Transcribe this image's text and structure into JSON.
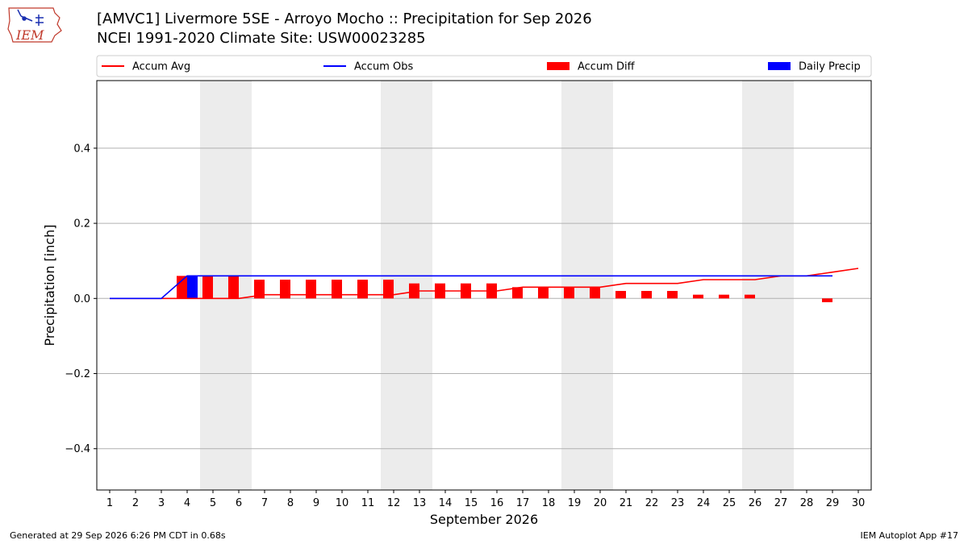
{
  "header": {
    "title_line1": "[AMVC1] Livermore 5SE - Arroyo Mocho :: Precipitation for Sep 2026",
    "title_line2": "NCEI 1991-2020 Climate Site: USW00023285",
    "logo_text": "IEM"
  },
  "footer": {
    "generated": "Generated at 29 Sep 2026 6:26 PM CDT in 0.68s",
    "app": "IEM Autoplot App #17"
  },
  "colors": {
    "avg": "#ff0000",
    "obs": "#0000ff",
    "diff": "#ff0000",
    "daily": "#0000ff",
    "weekend_band": "#ececec",
    "grid": "#b0b0b0"
  },
  "chart_data": {
    "type": "bar",
    "xlabel": "September 2026",
    "ylabel": "Precipitation [inch]",
    "xlim": [
      0.5,
      30.5
    ],
    "ylim": [
      -0.51,
      0.58
    ],
    "yticks": [
      -0.4,
      -0.2,
      0.0,
      0.2,
      0.4
    ],
    "ytick_labels": [
      "−0.4",
      "−0.2",
      "0.0",
      "0.2",
      "0.4"
    ],
    "x": [
      1,
      2,
      3,
      4,
      5,
      6,
      7,
      8,
      9,
      10,
      11,
      12,
      13,
      14,
      15,
      16,
      17,
      18,
      19,
      20,
      21,
      22,
      23,
      24,
      25,
      26,
      27,
      28,
      29,
      30
    ],
    "x_tick_labels": [
      "1",
      "2",
      "3",
      "4",
      "5",
      "6",
      "7",
      "8",
      "9",
      "10",
      "11",
      "12",
      "13",
      "14",
      "15",
      "16",
      "17",
      "18",
      "19",
      "20",
      "21",
      "22",
      "23",
      "24",
      "25",
      "26",
      "27",
      "28",
      "29",
      "30"
    ],
    "weekend_bands": [
      [
        4.5,
        6.5
      ],
      [
        11.5,
        13.5
      ],
      [
        18.5,
        20.5
      ],
      [
        25.5,
        27.5
      ]
    ],
    "grid": true,
    "legend_position": "top",
    "series": [
      {
        "name": "Accum Avg",
        "kind": "line",
        "x": [
          1,
          2,
          3,
          4,
          5,
          6,
          7,
          8,
          9,
          10,
          11,
          12,
          13,
          14,
          15,
          16,
          17,
          18,
          19,
          20,
          21,
          22,
          23,
          24,
          25,
          26,
          27,
          28,
          29,
          30
        ],
        "values": [
          0,
          0,
          0,
          0,
          0,
          0,
          0.01,
          0.01,
          0.01,
          0.01,
          0.01,
          0.01,
          0.02,
          0.02,
          0.02,
          0.02,
          0.03,
          0.03,
          0.03,
          0.03,
          0.04,
          0.04,
          0.04,
          0.05,
          0.05,
          0.05,
          0.06,
          0.06,
          0.07,
          0.08
        ]
      },
      {
        "name": "Accum Obs",
        "kind": "line",
        "x": [
          1,
          2,
          3,
          4,
          5,
          6,
          7,
          8,
          9,
          10,
          11,
          12,
          13,
          14,
          15,
          16,
          17,
          18,
          19,
          20,
          21,
          22,
          23,
          24,
          25,
          26,
          27,
          28,
          29
        ],
        "values": [
          0,
          0,
          0,
          0.06,
          0.06,
          0.06,
          0.06,
          0.06,
          0.06,
          0.06,
          0.06,
          0.06,
          0.06,
          0.06,
          0.06,
          0.06,
          0.06,
          0.06,
          0.06,
          0.06,
          0.06,
          0.06,
          0.06,
          0.06,
          0.06,
          0.06,
          0.06,
          0.06,
          0.06
        ]
      },
      {
        "name": "Accum Diff",
        "kind": "bar",
        "x": [
          1,
          2,
          3,
          4,
          5,
          6,
          7,
          8,
          9,
          10,
          11,
          12,
          13,
          14,
          15,
          16,
          17,
          18,
          19,
          20,
          21,
          22,
          23,
          24,
          25,
          26,
          27,
          28,
          29
        ],
        "values": [
          0,
          0,
          0,
          0.06,
          0.06,
          0.06,
          0.05,
          0.05,
          0.05,
          0.05,
          0.05,
          0.05,
          0.04,
          0.04,
          0.04,
          0.04,
          0.03,
          0.03,
          0.03,
          0.03,
          0.02,
          0.02,
          0.02,
          0.01,
          0.01,
          0.01,
          0,
          0,
          -0.01
        ]
      },
      {
        "name": "Daily Precip",
        "kind": "bar",
        "x": [
          4
        ],
        "values": [
          0.06
        ]
      }
    ]
  }
}
